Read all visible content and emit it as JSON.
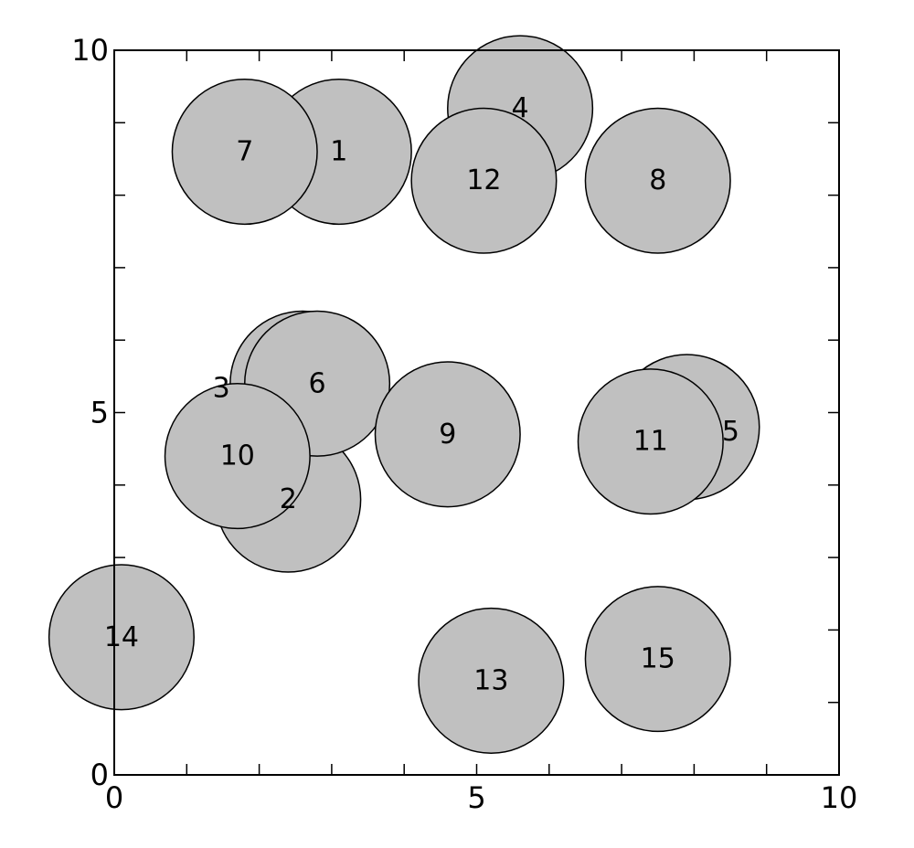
{
  "chart_data": {
    "type": "scatter",
    "title": "",
    "xlabel": "",
    "ylabel": "",
    "xlim": [
      0,
      10
    ],
    "ylim": [
      0,
      10
    ],
    "x_tick_labels": [
      "0",
      "5",
      "10"
    ],
    "y_tick_labels": [
      "0",
      "5",
      "10"
    ],
    "minor_tick_step": 1,
    "grid": false,
    "marker_radius": 1.0,
    "marker_fill": "#c0c0c0",
    "marker_stroke": "#000000",
    "points": [
      {
        "label": "1",
        "x": 3.1,
        "y": 8.6
      },
      {
        "label": "2",
        "x": 2.4,
        "y": 3.8
      },
      {
        "label": "3",
        "x": 2.6,
        "y": 5.4
      },
      {
        "label": "4",
        "x": 5.6,
        "y": 9.2
      },
      {
        "label": "5",
        "x": 7.9,
        "y": 4.8
      },
      {
        "label": "6",
        "x": 2.8,
        "y": 5.4
      },
      {
        "label": "7",
        "x": 1.8,
        "y": 8.6
      },
      {
        "label": "8",
        "x": 7.5,
        "y": 8.2
      },
      {
        "label": "9",
        "x": 4.6,
        "y": 4.7
      },
      {
        "label": "10",
        "x": 1.7,
        "y": 4.4
      },
      {
        "label": "11",
        "x": 7.4,
        "y": 4.6
      },
      {
        "label": "12",
        "x": 5.1,
        "y": 8.2
      },
      {
        "label": "13",
        "x": 5.2,
        "y": 1.3
      },
      {
        "label": "14",
        "x": 0.1,
        "y": 1.9
      },
      {
        "label": "15",
        "x": 7.5,
        "y": 1.6
      }
    ]
  }
}
